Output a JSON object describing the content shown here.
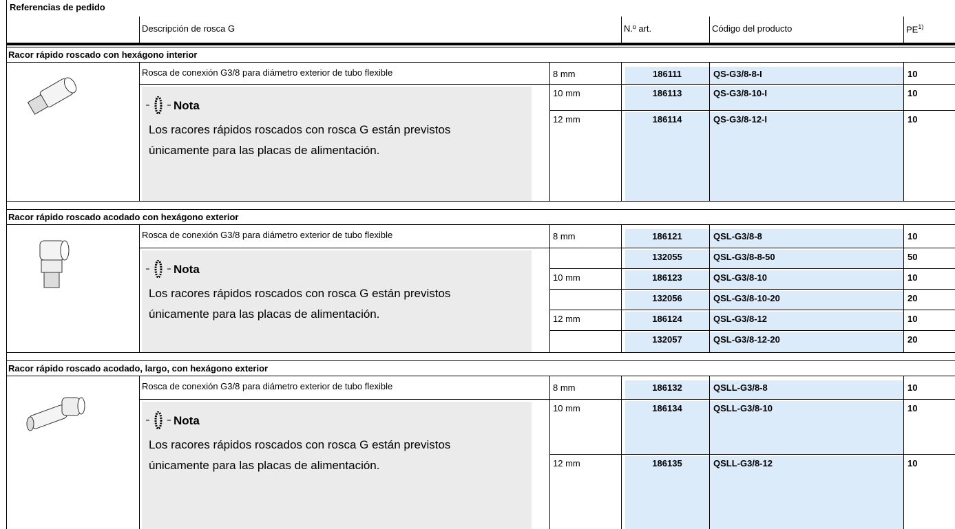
{
  "title": "Referencias de pedido",
  "header": {
    "description": "Descripción de rosca G",
    "part_no": "N.º art.",
    "code": "Código del producto",
    "pe": "PE",
    "pe_note": "1)"
  },
  "sections": [
    {
      "title": "Racor rápido roscado con hexágono interior",
      "description": "Rosca de conexión G3/8 para diámetro exterior de tubo flexible",
      "note_title": "Nota",
      "note_text": "Los racores rápidos roscados con rosca G están previstos únicamente para las placas de alimentación.",
      "rows": [
        {
          "size": "8 mm",
          "part_no": "186111",
          "code": "QS-G3/8-8-I",
          "pe": 10
        },
        {
          "size": "10 mm",
          "part_no": "186113",
          "code": "QS-G3/8-10-I",
          "pe": 10
        },
        {
          "size": "12 mm",
          "part_no": "186114",
          "code": "QS-G3/8-12-I",
          "pe": 10
        }
      ]
    },
    {
      "title": "Racor rápido roscado acodado con hexágono exterior",
      "description": "Rosca de conexión G3/8 para diámetro exterior de tubo flexible",
      "note_title": "Nota",
      "note_text": "Los racores rápidos roscados con rosca G están previstos únicamente para las placas de alimentación.",
      "rows": [
        {
          "size": "8 mm",
          "part_no": "186121",
          "code": "QSL-G3/8-8",
          "pe": 10
        },
        {
          "size": null,
          "part_no": "132055",
          "code": "QSL-G3/8-8-50",
          "pe": 50
        },
        {
          "size": "10 mm",
          "part_no": "186123",
          "code": "QSL-G3/8-10",
          "pe": 10
        },
        {
          "size": null,
          "part_no": "132056",
          "code": "QSL-G3/8-10-20",
          "pe": 20
        },
        {
          "size": "12 mm",
          "part_no": "186124",
          "code": "QSL-G3/8-12",
          "pe": 10
        },
        {
          "size": null,
          "part_no": "132057",
          "code": "QSL-G3/8-12-20",
          "pe": 20
        }
      ]
    },
    {
      "title": "Racor rápido roscado acodado, largo, con hexágono exterior",
      "description": "Rosca de conexión G3/8 para diámetro exterior de tubo flexible",
      "note_title": "Nota",
      "note_text": "Los racores rápidos roscados con rosca G están previstos únicamente para las placas de alimentación.",
      "rows": [
        {
          "size": "8 mm",
          "part_no": "186132",
          "code": "QSLL-G3/8-8",
          "pe": 10
        },
        {
          "size": "10 mm",
          "part_no": "186134",
          "code": "QSLL-G3/8-10",
          "pe": 10
        },
        {
          "size": "12 mm",
          "part_no": "186135",
          "code": "QSLL-G3/8-12",
          "pe": 10
        }
      ]
    }
  ]
}
